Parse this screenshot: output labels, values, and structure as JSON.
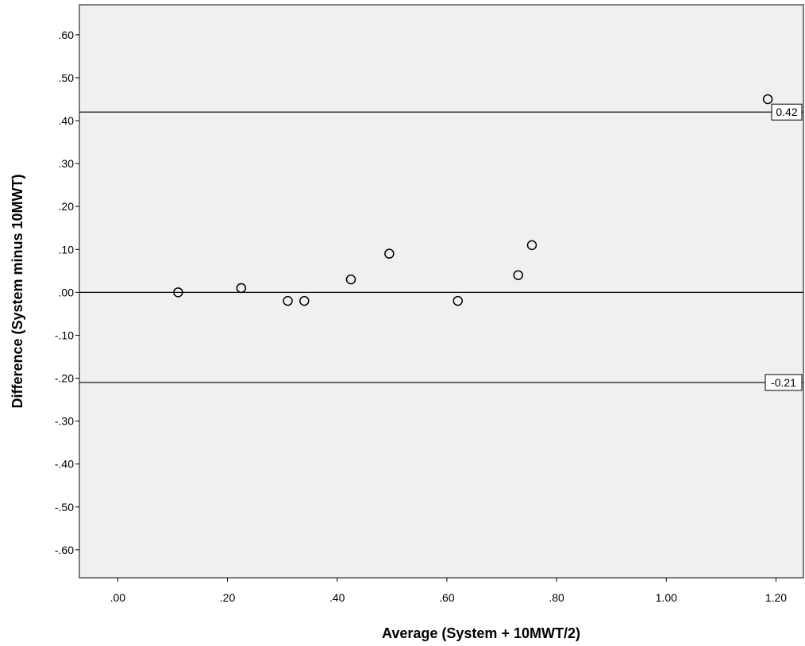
{
  "chart_data": {
    "type": "scatter",
    "xlabel": "Average (System + 10MWT/2)",
    "ylabel": "Difference (System minus 10MWT)",
    "xlim": [
      -0.07,
      1.25
    ],
    "ylim": [
      -0.665,
      0.67
    ],
    "x_ticks": [
      {
        "value": 0.0,
        "label": ".00"
      },
      {
        "value": 0.2,
        "label": ".20"
      },
      {
        "value": 0.4,
        "label": ".40"
      },
      {
        "value": 0.6,
        "label": ".60"
      },
      {
        "value": 0.8,
        "label": ".80"
      },
      {
        "value": 1.0,
        "label": "1.00"
      },
      {
        "value": 1.2,
        "label": "1.20"
      }
    ],
    "y_ticks": [
      {
        "value": 0.6,
        "label": ".60"
      },
      {
        "value": 0.5,
        "label": ".50"
      },
      {
        "value": 0.4,
        "label": ".40"
      },
      {
        "value": 0.3,
        "label": ".30"
      },
      {
        "value": 0.2,
        "label": ".20"
      },
      {
        "value": 0.1,
        "label": ".10"
      },
      {
        "value": 0.0,
        "label": ".00"
      },
      {
        "value": -0.1,
        "label": "-.10"
      },
      {
        "value": -0.2,
        "label": "-.20"
      },
      {
        "value": -0.3,
        "label": "-.30"
      },
      {
        "value": -0.4,
        "label": "-.40"
      },
      {
        "value": -0.5,
        "label": "-.50"
      },
      {
        "value": -0.6,
        "label": "-.60"
      }
    ],
    "points": [
      {
        "x": 0.11,
        "y": 0.0
      },
      {
        "x": 0.225,
        "y": 0.01
      },
      {
        "x": 0.31,
        "y": -0.02
      },
      {
        "x": 0.34,
        "y": -0.02
      },
      {
        "x": 0.425,
        "y": 0.03
      },
      {
        "x": 0.495,
        "y": 0.09
      },
      {
        "x": 0.62,
        "y": -0.02
      },
      {
        "x": 0.73,
        "y": 0.04
      },
      {
        "x": 0.755,
        "y": 0.11
      },
      {
        "x": 1.185,
        "y": 0.45
      }
    ],
    "reference_lines": [
      {
        "y": 0.42,
        "label": "0.42"
      },
      {
        "y": 0.0,
        "label": ""
      },
      {
        "y": -0.21,
        "label": "-0.21"
      }
    ],
    "grid": false,
    "legend": "none",
    "colors": {
      "plot_background": "#f0f0f0",
      "line": "#000000",
      "marker_stroke": "#000000",
      "label_box_fill": "#ffffff"
    }
  }
}
